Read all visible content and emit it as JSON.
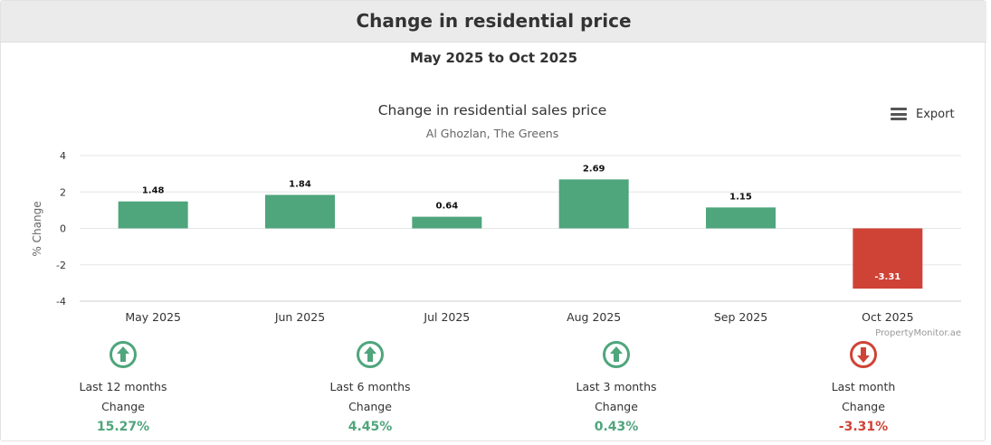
{
  "header": {
    "title": "Change in residential price"
  },
  "period": "May 2025 to Oct 2025",
  "export_label": "Export",
  "colors": {
    "positive": "#4fa57c",
    "negative": "#cf4336",
    "grid": "#e6e6e6"
  },
  "chart_data": {
    "type": "bar",
    "title": "Change in residential sales price",
    "subtitle": "Al Ghozlan, The Greens",
    "xlabel": "",
    "ylabel": "% Change",
    "categories": [
      "May 2025",
      "Jun 2025",
      "Jul 2025",
      "Aug 2025",
      "Sep 2025",
      "Oct 2025"
    ],
    "values": [
      1.48,
      1.84,
      0.64,
      2.69,
      1.15,
      -3.31
    ],
    "ylim": [
      -4,
      4
    ],
    "yticks": [
      -4,
      -2,
      0,
      2,
      4
    ],
    "grid": true,
    "credit": "PropertyMonitor.ae"
  },
  "stats": [
    {
      "label": "Last 12 months",
      "sub": "Change",
      "value": "15.27%",
      "direction": "up"
    },
    {
      "label": "Last 6 months",
      "sub": "Change",
      "value": "4.45%",
      "direction": "up"
    },
    {
      "label": "Last 3 months",
      "sub": "Change",
      "value": "0.43%",
      "direction": "up"
    },
    {
      "label": "Last month",
      "sub": "Change",
      "value": "-3.31%",
      "direction": "down"
    }
  ]
}
